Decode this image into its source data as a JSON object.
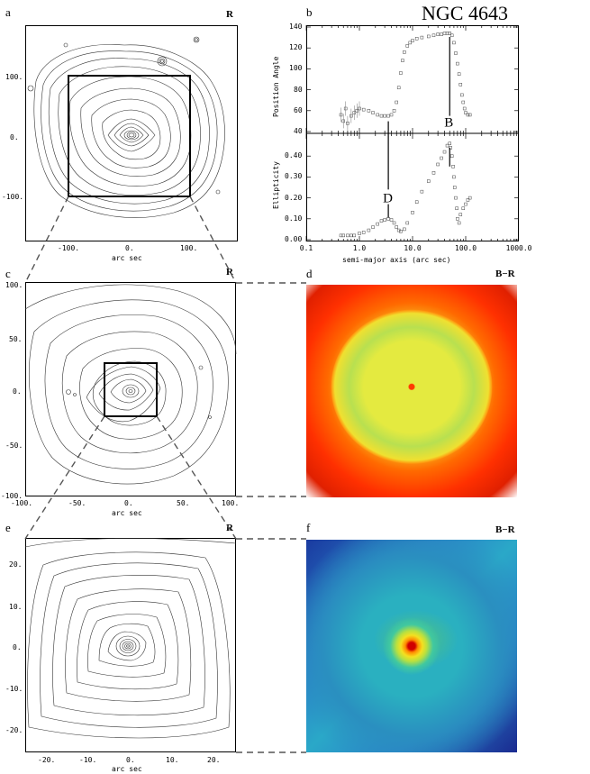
{
  "figure": {
    "title": "NGC 4643",
    "panels": {
      "a": {
        "letter": "a",
        "band": "R",
        "xlabel": "arc sec",
        "xticks": [
          "-100.",
          "0.",
          "100."
        ],
        "yticks": [
          "100.",
          "0.",
          "-100."
        ]
      },
      "b": {
        "letter": "b"
      },
      "c": {
        "letter": "c",
        "band": "R",
        "xlabel": "arc sec",
        "xticks": [
          "-100.",
          "-50.",
          "0.",
          "50.",
          "100."
        ],
        "yticks": [
          "100.",
          "50.",
          "0.",
          "-50.",
          "-100."
        ]
      },
      "d": {
        "letter": "d",
        "band": "B−R"
      },
      "e": {
        "letter": "e",
        "band": "R",
        "xlabel": "arc sec",
        "xticks": [
          "-20.",
          "-10.",
          "0.",
          "10.",
          "20."
        ],
        "yticks": [
          "20.",
          "10.",
          "0.",
          "-10.",
          "-20."
        ]
      },
      "f": {
        "letter": "f",
        "band": "B−R"
      }
    }
  },
  "chart_data": {
    "type": "scatter",
    "xlabel": "semi-major axis (arc sec)",
    "xscale": "log",
    "xlim": [
      0.1,
      1000
    ],
    "xticks": [
      "0.1",
      "1.0",
      "10.0",
      "100.0",
      "1000.0"
    ],
    "annotations": [
      {
        "text": "B",
        "x": 50
      },
      {
        "text": "D",
        "x": 3.5
      }
    ],
    "subplots": [
      {
        "ylabel": "Position Angle",
        "ylim": [
          40,
          140
        ],
        "yticks": [
          "40",
          "60",
          "80",
          "100",
          "120",
          "140"
        ],
        "series": [
          {
            "x": [
              0.45,
              0.5,
              0.55,
              0.6,
              0.7,
              0.8,
              0.9,
              1.0,
              1.2,
              1.5,
              1.8,
              2.2,
              2.6,
              3.0,
              3.5,
              4.0,
              4.5,
              5.0,
              5.5,
              6.0,
              6.5,
              7.0,
              8.0,
              9.0,
              10,
              12,
              15,
              20,
              25,
              30,
              35,
              40,
              45,
              50,
              55,
              60,
              65,
              70,
              75,
              80,
              85,
              90,
              95,
              100,
              110,
              120
            ],
            "y": [
              56,
              50,
              62,
              48,
              55,
              58,
              60,
              62,
              61,
              60,
              58,
              56,
              55,
              55,
              55,
              56,
              60,
              68,
              82,
              96,
              108,
              116,
              122,
              125,
              127,
              129,
              130,
              131,
              132,
              133,
              133,
              134,
              134,
              134,
              132,
              125,
              115,
              105,
              95,
              85,
              75,
              68,
              62,
              58,
              56,
              56
            ]
          }
        ]
      },
      {
        "ylabel": "Ellipticity",
        "ylim": [
          0,
          0.5
        ],
        "yticks": [
          "0.00",
          "0.10",
          "0.20",
          "0.30",
          "0.40"
        ],
        "series": [
          {
            "x": [
              0.45,
              0.5,
              0.6,
              0.7,
              0.8,
              1.0,
              1.2,
              1.5,
              1.8,
              2.2,
              2.6,
              3.0,
              3.5,
              4.0,
              4.5,
              5.0,
              5.5,
              6.0,
              7.0,
              8.0,
              10,
              12,
              15,
              20,
              25,
              30,
              35,
              40,
              45,
              50,
              52,
              55,
              58,
              60,
              62,
              65,
              68,
              70,
              75,
              80,
              90,
              100,
              110,
              120
            ],
            "y": [
              0.02,
              0.02,
              0.02,
              0.02,
              0.02,
              0.03,
              0.035,
              0.045,
              0.06,
              0.075,
              0.09,
              0.095,
              0.1,
              0.095,
              0.08,
              0.06,
              0.045,
              0.04,
              0.05,
              0.08,
              0.13,
              0.18,
              0.23,
              0.28,
              0.32,
              0.36,
              0.39,
              0.42,
              0.45,
              0.46,
              0.44,
              0.4,
              0.35,
              0.3,
              0.25,
              0.2,
              0.15,
              0.1,
              0.08,
              0.12,
              0.15,
              0.17,
              0.19,
              0.2
            ]
          }
        ]
      }
    ]
  }
}
